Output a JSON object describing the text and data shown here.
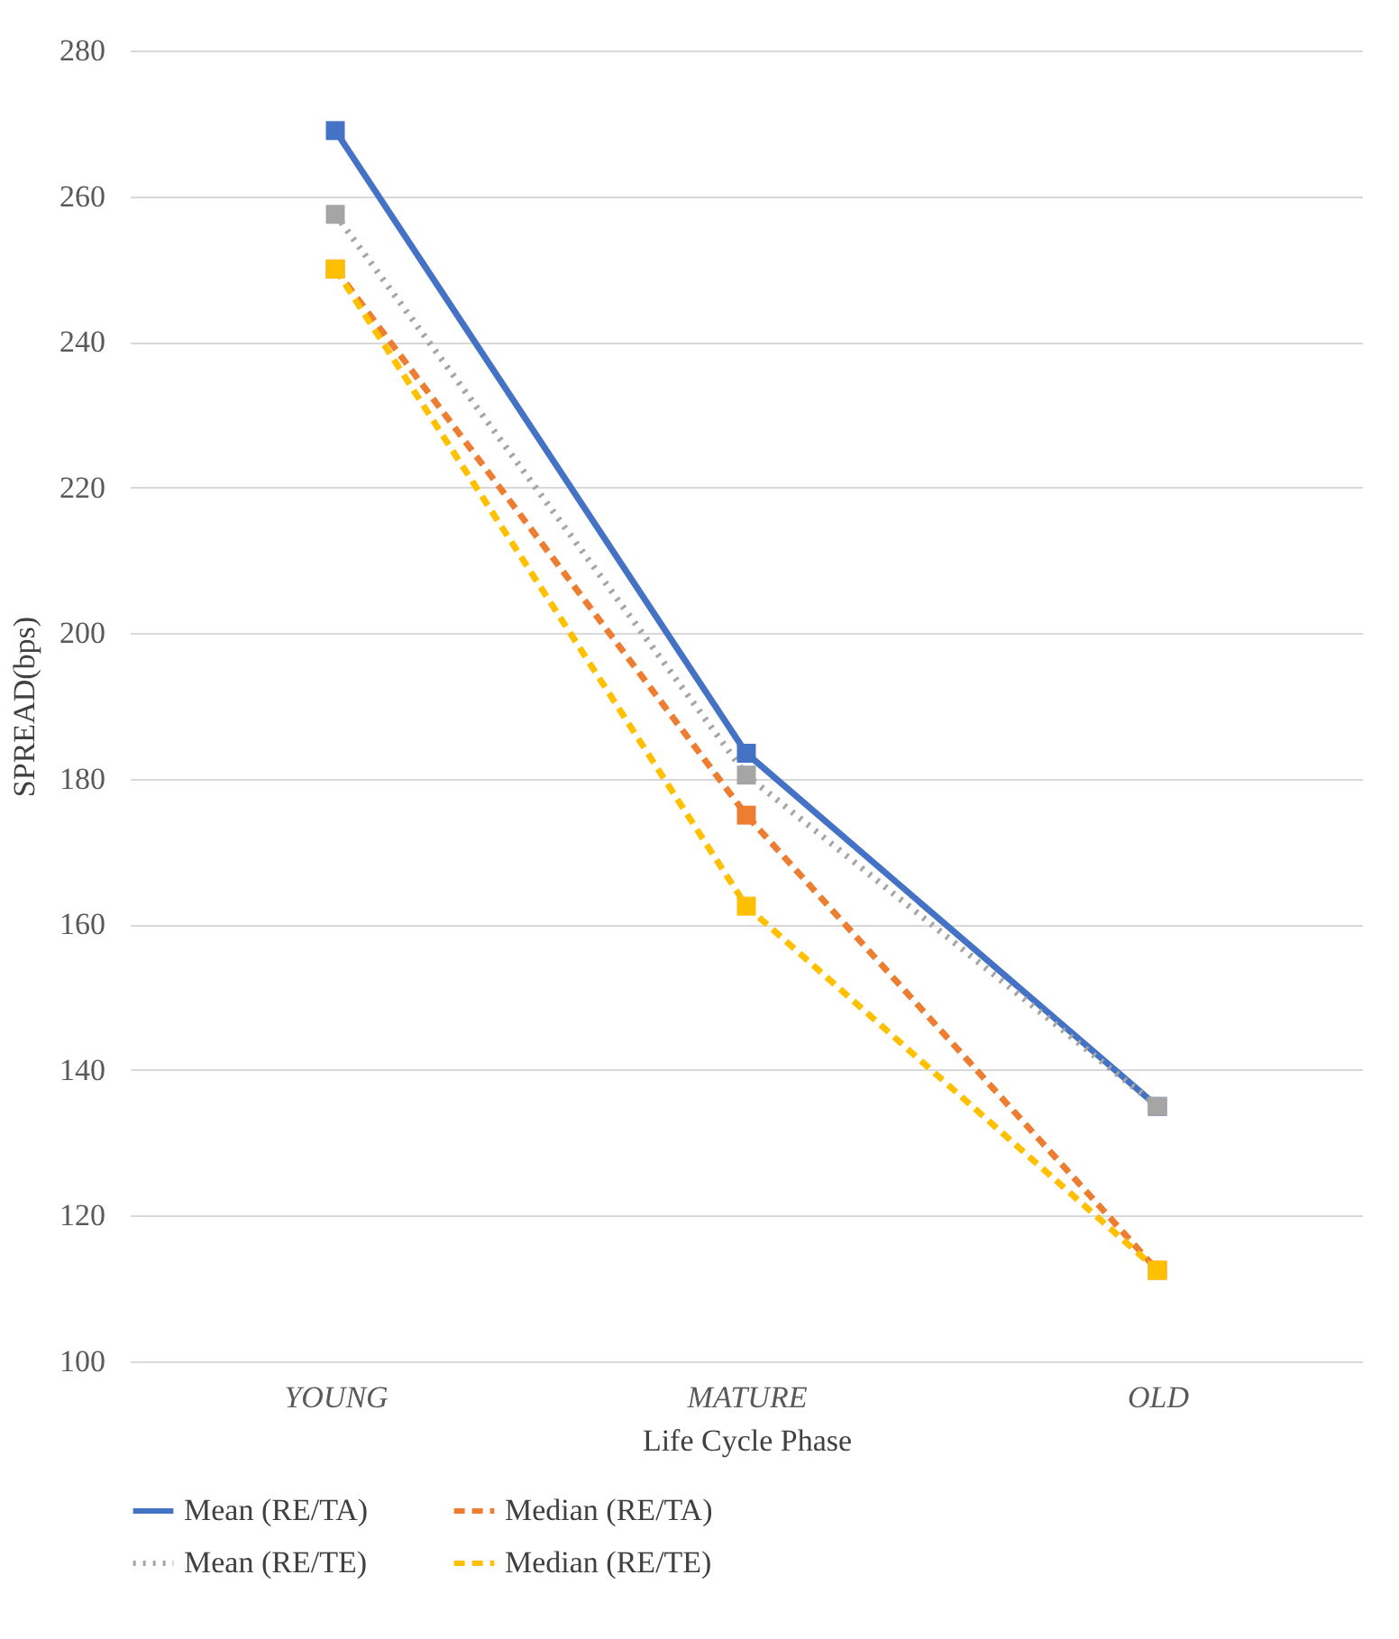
{
  "chart_data": {
    "type": "line",
    "xlabel": "Life Cycle Phase",
    "ylabel": "SPREAD(bps)",
    "categories": [
      "YOUNG",
      "MATURE",
      "OLD"
    ],
    "series": [
      {
        "name": "Mean (RE/TA)",
        "color": "#4472c4",
        "line_style": "solid",
        "values": [
          269,
          183.5,
          135
        ]
      },
      {
        "name": "Median (RE/TA)",
        "color": "#ed7d31",
        "line_style": "dashed",
        "values": [
          250,
          175,
          112.5
        ]
      },
      {
        "name": "Mean (RE/TE)",
        "color": "#a5a5a5",
        "line_style": "dotted",
        "values": [
          257.5,
          180.5,
          135
        ]
      },
      {
        "name": "Median (RE/TE)",
        "color": "#ffc000",
        "line_style": "dashed",
        "values": [
          250,
          162.5,
          112.5
        ]
      }
    ],
    "ylim": [
      100,
      280
    ],
    "yticks": [
      100,
      120,
      140,
      160,
      180,
      200,
      220,
      240,
      260,
      280
    ],
    "grid": "y",
    "legend": "bottom",
    "marker": "square"
  }
}
